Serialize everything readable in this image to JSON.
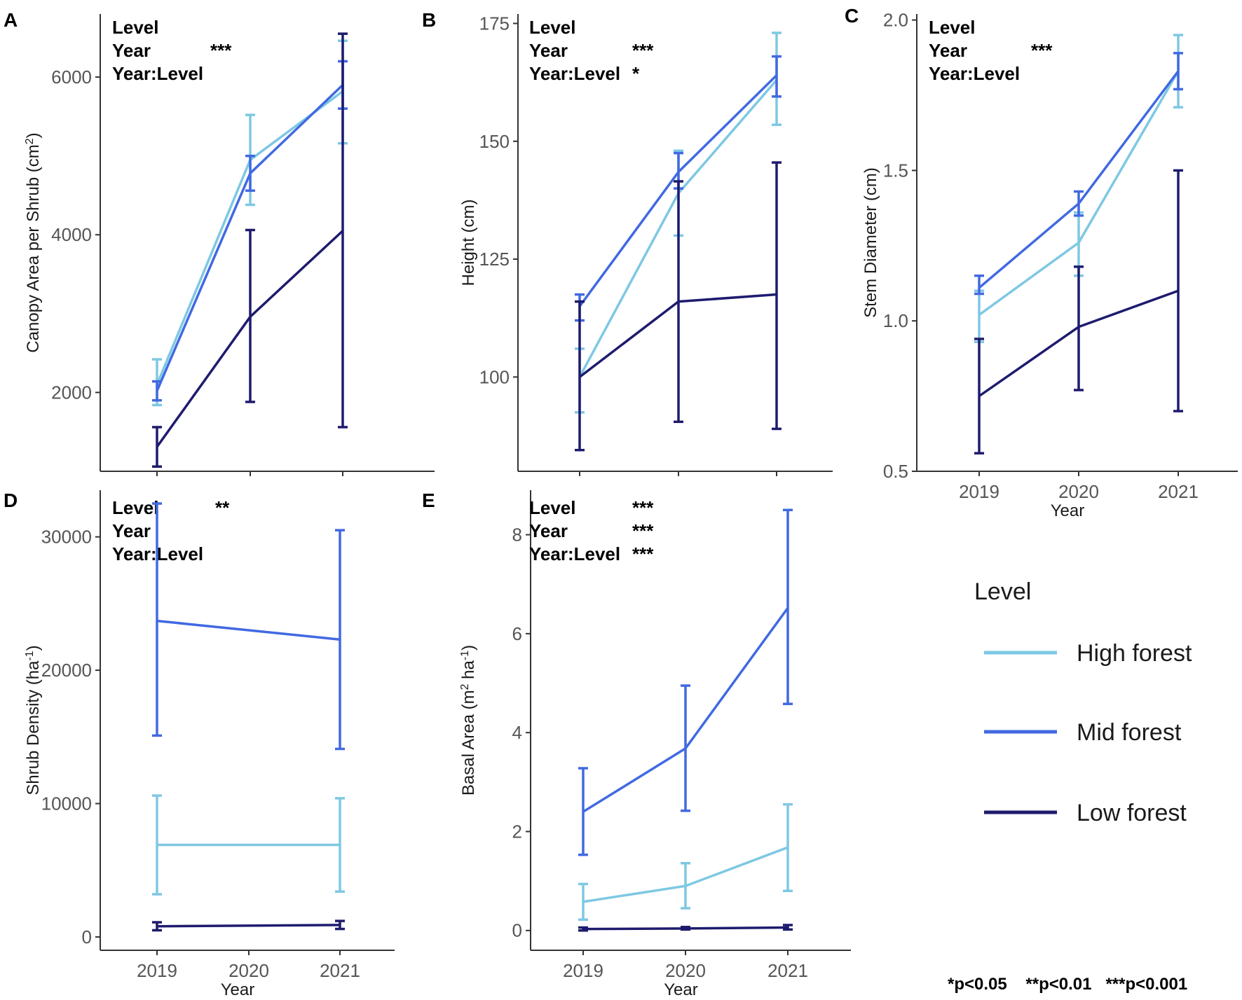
{
  "colors": {
    "High forest": "#7ec8e3",
    "Mid forest": "#4169e1",
    "Low forest": "#1e1b6e"
  },
  "legend": {
    "title": "Level",
    "entries": [
      "High forest",
      "Mid forest",
      "Low forest"
    ]
  },
  "footnote": "*p<0.05    **p<0.01   ***p<0.001",
  "chart_data": [
    {
      "panel": "A",
      "type": "line",
      "ylabel": "Canopy Area per Shrub (cm",
      "ylabel_sup": "2",
      "ylabel_end": ")",
      "xlabel": "",
      "categories": [
        "2019",
        "2020",
        "2021"
      ],
      "show_x_ticklabels": false,
      "ylim": [
        1000,
        6800
      ],
      "yticks": [
        2000,
        4000,
        6000
      ],
      "stats": [
        {
          "term": "Level",
          "sig": ""
        },
        {
          "term": "Year",
          "sig": "***"
        },
        {
          "term": "Year:Level",
          "sig": ""
        }
      ],
      "series": [
        {
          "name": "High forest",
          "values": [
            2100,
            4950,
            5820
          ],
          "err_low": [
            1840,
            4380,
            5160
          ],
          "err_high": [
            2420,
            5520,
            6460
          ]
        },
        {
          "name": "Mid forest",
          "values": [
            2020,
            4780,
            5900
          ],
          "err_low": [
            1900,
            4560,
            5600
          ],
          "err_high": [
            2140,
            5000,
            6200
          ]
        },
        {
          "name": "Low forest",
          "values": [
            1310,
            2960,
            4050
          ],
          "err_low": [
            1060,
            1880,
            1560
          ],
          "err_high": [
            1560,
            4060,
            6550
          ]
        }
      ]
    },
    {
      "panel": "B",
      "type": "line",
      "ylabel": "Height (cm)",
      "xlabel": "",
      "categories": [
        "2019",
        "2020",
        "2021"
      ],
      "show_x_ticklabels": false,
      "ylim": [
        80,
        177
      ],
      "yticks": [
        100,
        125,
        150,
        175
      ],
      "stats": [
        {
          "term": "Level",
          "sig": ""
        },
        {
          "term": "Year",
          "sig": "***"
        },
        {
          "term": "Year:Level",
          "sig": "*"
        }
      ],
      "series": [
        {
          "name": "High forest",
          "values": [
            100,
            139,
            163
          ],
          "err_low": [
            92.5,
            130,
            153.5
          ],
          "err_high": [
            106,
            148,
            173
          ]
        },
        {
          "name": "Mid forest",
          "values": [
            115,
            143.5,
            164
          ],
          "err_low": [
            112,
            140,
            159.5
          ],
          "err_high": [
            117.5,
            147.5,
            168
          ]
        },
        {
          "name": "Low forest",
          "values": [
            100,
            116,
            117.5
          ],
          "err_low": [
            84.5,
            90.5,
            89
          ],
          "err_high": [
            116,
            141.5,
            145.5
          ]
        }
      ]
    },
    {
      "panel": "C",
      "type": "line",
      "ylabel": "Stem Diameter (cm)",
      "xlabel": "Year",
      "categories": [
        "2019",
        "2020",
        "2021"
      ],
      "show_x_ticklabels": true,
      "ylim": [
        0.5,
        2.02
      ],
      "yticks": [
        0.5,
        1.0,
        1.5,
        2.0
      ],
      "ytick_labels": [
        "0.5",
        "1.0",
        "1.5",
        "2.0"
      ],
      "stats": [
        {
          "term": "Level",
          "sig": ""
        },
        {
          "term": "Year",
          "sig": "***"
        },
        {
          "term": "Year:Level",
          "sig": ""
        }
      ],
      "series": [
        {
          "name": "High forest",
          "values": [
            1.02,
            1.26,
            1.83
          ],
          "err_low": [
            0.93,
            1.15,
            1.71
          ],
          "err_high": [
            1.1,
            1.36,
            1.95
          ]
        },
        {
          "name": "Mid forest",
          "values": [
            1.11,
            1.39,
            1.83
          ],
          "err_low": [
            1.09,
            1.35,
            1.77
          ],
          "err_high": [
            1.15,
            1.43,
            1.89
          ]
        },
        {
          "name": "Low forest",
          "values": [
            0.75,
            0.98,
            1.1
          ],
          "err_low": [
            0.56,
            0.77,
            0.7
          ],
          "err_high": [
            0.94,
            1.18,
            1.5
          ]
        }
      ]
    },
    {
      "panel": "D",
      "type": "line",
      "ylabel": "Shrub Density (ha",
      "ylabel_sup": "-1",
      "ylabel_end": ")",
      "xlabel": "Year",
      "categories": [
        "2019",
        "2020",
        "2021"
      ],
      "show_x_ticklabels": true,
      "ylim": [
        -1000,
        33500
      ],
      "yticks": [
        0,
        10000,
        20000,
        30000
      ],
      "stats": [
        {
          "term": "Level",
          "sig": "**"
        },
        {
          "term": "Year",
          "sig": ""
        },
        {
          "term": "Year:Level",
          "sig": ""
        }
      ],
      "series": [
        {
          "name": "High forest",
          "x": [
            "2019",
            "2021"
          ],
          "values": [
            6900,
            6900
          ],
          "err_low": [
            3200,
            3400
          ],
          "err_high": [
            10600,
            10400
          ]
        },
        {
          "name": "Mid forest",
          "x": [
            "2019",
            "2021"
          ],
          "values": [
            23700,
            22300
          ],
          "err_low": [
            15100,
            14100
          ],
          "err_high": [
            32500,
            30500
          ]
        },
        {
          "name": "Low forest",
          "x": [
            "2019",
            "2021"
          ],
          "values": [
            800,
            900
          ],
          "err_low": [
            500,
            600
          ],
          "err_high": [
            1100,
            1200
          ]
        }
      ]
    },
    {
      "panel": "E",
      "type": "line",
      "ylabel": "Basal Area (m",
      "ylabel_sup": "2",
      "ylabel_mid": " ha",
      "ylabel_sup2": "-1",
      "ylabel_end": ")",
      "xlabel": "Year",
      "categories": [
        "2019",
        "2020",
        "2021"
      ],
      "show_x_ticklabels": true,
      "ylim": [
        -0.4,
        8.9
      ],
      "yticks": [
        0,
        2,
        4,
        6,
        8
      ],
      "stats": [
        {
          "term": "Level",
          "sig": "***"
        },
        {
          "term": "Year",
          "sig": "***"
        },
        {
          "term": "Year:Level",
          "sig": "***"
        }
      ],
      "series": [
        {
          "name": "High forest",
          "values": [
            0.58,
            0.9,
            1.68
          ],
          "err_low": [
            0.22,
            0.45,
            0.8
          ],
          "err_high": [
            0.94,
            1.36,
            2.55
          ]
        },
        {
          "name": "Mid forest",
          "values": [
            2.4,
            3.68,
            6.52
          ],
          "err_low": [
            1.53,
            2.42,
            4.58
          ],
          "err_high": [
            3.28,
            4.95,
            8.5
          ]
        },
        {
          "name": "Low forest",
          "values": [
            0.03,
            0.04,
            0.06
          ],
          "err_low": [
            0.0,
            0.02,
            0.02
          ],
          "err_high": [
            0.06,
            0.07,
            0.11
          ]
        }
      ]
    }
  ]
}
